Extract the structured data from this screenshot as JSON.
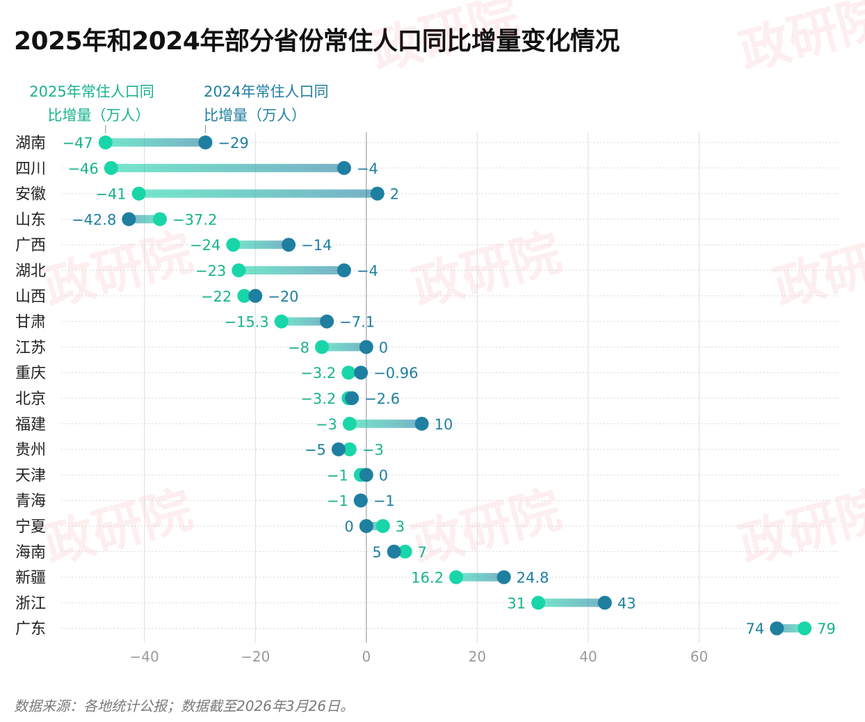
{
  "title": "2025年和2024年部分省份常住人口同比增量变化情况",
  "footer": "数据来源：各地统计公报；数据截至2026年3月26日。",
  "watermark": "政研院",
  "colors": {
    "y2025": "#19d6a9",
    "y2024": "#1f7fa0",
    "label2025": "#17b38e",
    "label2024": "#1f7fa0",
    "axis": "#999999",
    "grid": "#dddddd"
  },
  "chart_data": {
    "type": "dumbbell",
    "grid": true,
    "xlim": [
      -56,
      85
    ],
    "xticks": [
      -40,
      -20,
      0,
      20,
      40,
      60
    ],
    "tick_labels": [
      "−40",
      "−20",
      "0",
      "20",
      "40",
      "60"
    ],
    "series": [
      {
        "name": "2025年常住人口同比增量（万人）",
        "key": "y2025"
      },
      {
        "name": "2024年常住人口同比增量（万人）",
        "key": "y2024"
      }
    ],
    "legend": {
      "s2025": [
        "2025年常住人口同",
        "比增量（万人）"
      ],
      "s2024": [
        "2024年常住人口同",
        "比增量（万人）"
      ]
    },
    "categories": [
      "湖南",
      "四川",
      "安徽",
      "山东",
      "广西",
      "湖北",
      "山西",
      "甘肃",
      "江苏",
      "重庆",
      "北京",
      "福建",
      "贵州",
      "天津",
      "青海",
      "宁夏",
      "海南",
      "新疆",
      "浙江",
      "广东"
    ],
    "y2025": [
      -47,
      -46,
      -41,
      -37.2,
      -24,
      -23,
      -22,
      -15.3,
      -8,
      -3.2,
      -3.2,
      -3,
      -3,
      -1,
      -1,
      3,
      7,
      16.2,
      31,
      79
    ],
    "y2024": [
      -29,
      -4,
      2,
      -42.8,
      -14,
      -4,
      -20,
      -7.1,
      0,
      -0.96,
      -2.6,
      10,
      -5,
      0,
      -1,
      0,
      5,
      24.8,
      43,
      74
    ],
    "labels2025": [
      "−47",
      "−46",
      "−41",
      "−37.2",
      "−24",
      "−23",
      "−22",
      "−15.3",
      "−8",
      "−3.2",
      "−3.2",
      "−3",
      "−3",
      "−1",
      "−1",
      "3",
      "7",
      "16.2",
      "31",
      "79"
    ],
    "labels2024": [
      "−29",
      "−4",
      "2",
      "−42.8",
      "−14",
      "−4",
      "−20",
      "−7.1",
      "0",
      "−0.96",
      "−2.6",
      "10",
      "−5",
      "0",
      "−1",
      "0",
      "5",
      "24.8",
      "43",
      "74"
    ]
  }
}
